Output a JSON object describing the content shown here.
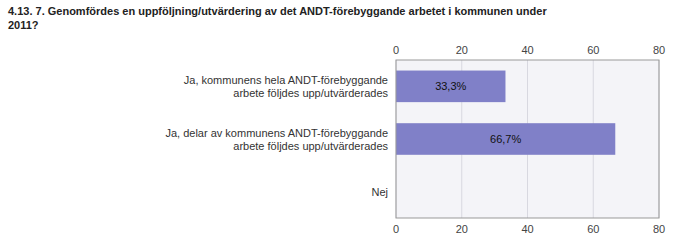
{
  "chart_data": {
    "type": "bar",
    "orientation": "horizontal",
    "title": "4.13. 7. Genomförde­s en uppföljning/utvärdering av det ANDT-förebyggande arbetet i kommunen under\n2011?",
    "categories": [
      "Ja, kommunens hela ANDT-förebyggande\narbete följdes upp/utvärderades",
      "Ja, delar av kommunens ANDT-förebyggande\narbete följdes upp/utvärderades",
      "Nej"
    ],
    "values": [
      33.3,
      66.7,
      0.0
    ],
    "value_labels": [
      "33,3%",
      "66,7%",
      null
    ],
    "data_labels": true,
    "color": "#8080c8",
    "xlim": [
      0,
      80
    ],
    "xticks": [
      0,
      20,
      40,
      60,
      80
    ],
    "grid": true
  }
}
